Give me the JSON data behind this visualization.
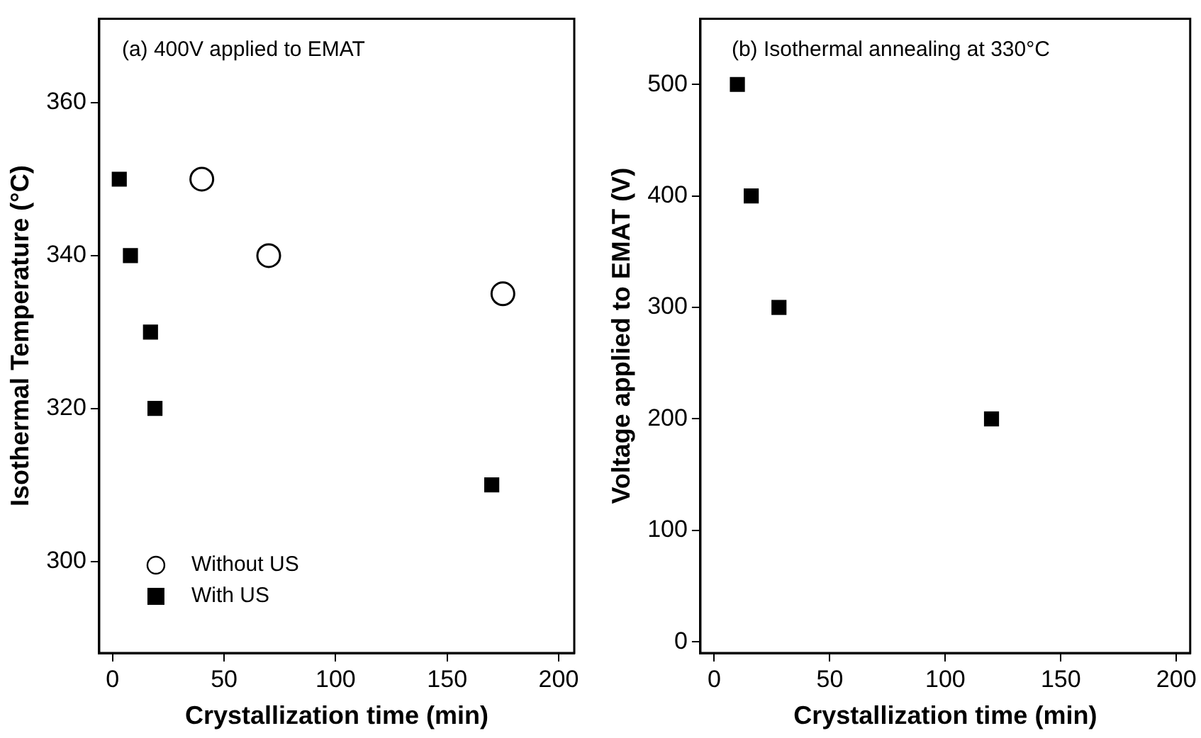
{
  "chart_data": [
    {
      "type": "scatter",
      "title": "(a) 400V applied to EMAT",
      "xlabel": "Crystallization time (min)",
      "ylabel": "Isothermal Temperature (°C)",
      "xlim": [
        -6,
        207
      ],
      "xticks": [
        0,
        50,
        100,
        150,
        200
      ],
      "ylim": [
        288,
        371
      ],
      "yticks": [
        300,
        320,
        340,
        360
      ],
      "grid": false,
      "legend": "bottom left",
      "series": [
        {
          "name": "Without US",
          "color": "#000000",
          "marker": "circle",
          "x": [
            40,
            70,
            175
          ],
          "values": [
            350,
            340,
            335
          ]
        },
        {
          "name": "With US",
          "color": "#000000",
          "marker": "square",
          "x": [
            3,
            8,
            17,
            19,
            170
          ],
          "values": [
            350,
            340,
            330,
            320,
            310
          ]
        }
      ]
    },
    {
      "type": "scatter",
      "title": "(b) Isothermal annealing at 330°C",
      "xlabel": "Crystallization time (min)",
      "ylabel": "Voltage applied to EMAT (V)",
      "xlim": [
        -6,
        206
      ],
      "xticks": [
        0,
        50,
        100,
        150,
        200
      ],
      "ylim": [
        -10,
        559
      ],
      "yticks": [
        0,
        100,
        200,
        300,
        400,
        500
      ],
      "grid": false,
      "legend": false,
      "series": [
        {
          "color": "#000000",
          "marker": "square",
          "x": [
            10,
            16,
            28,
            120
          ],
          "values": [
            500,
            400,
            300,
            200
          ]
        }
      ]
    }
  ]
}
